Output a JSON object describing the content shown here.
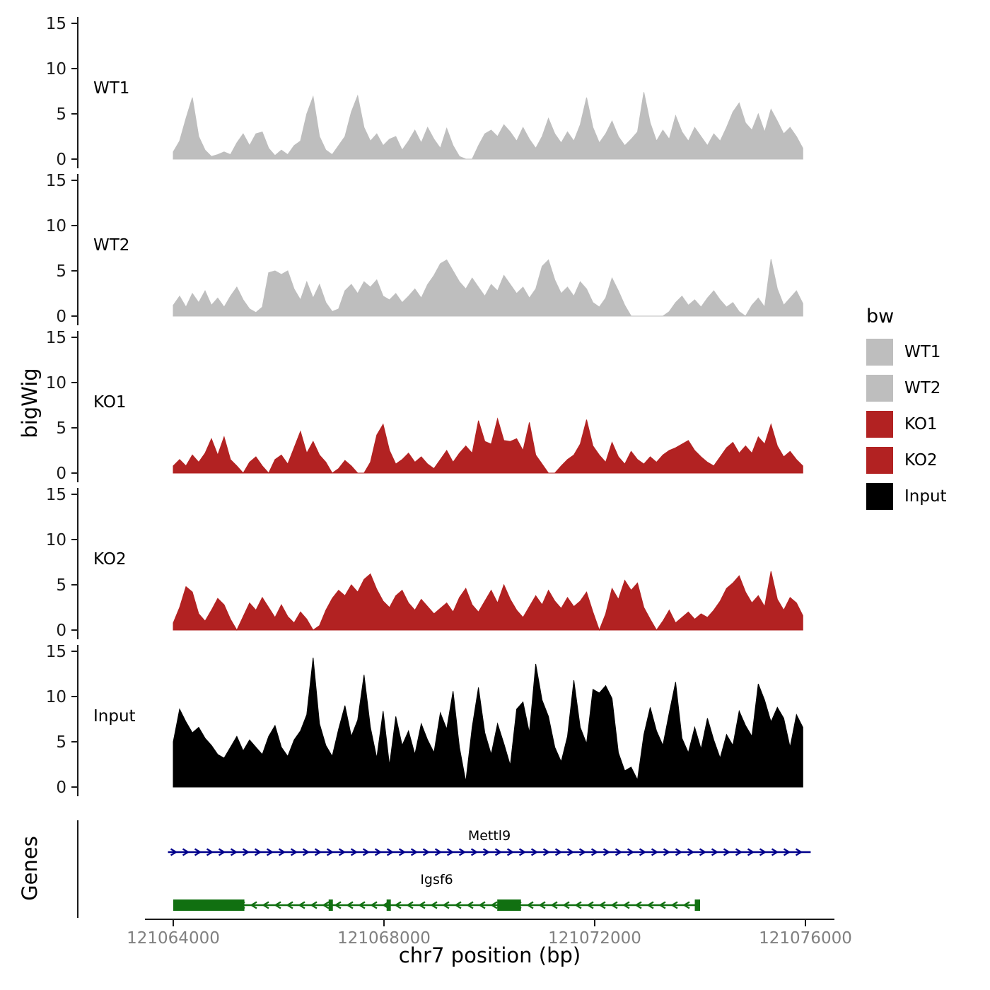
{
  "chart_data": {
    "type": "area",
    "title": "",
    "ylabel": "bigWig",
    "xlabel": "chr7 position (bp)",
    "genes_panel_label": "Genes",
    "legend": {
      "title": "bw",
      "items": [
        {
          "label": "WT1",
          "color": "#bebebe"
        },
        {
          "label": "WT2",
          "color": "#bebebe"
        },
        {
          "label": "KO1",
          "color": "#b22222"
        },
        {
          "label": "KO2",
          "color": "#b22222"
        },
        {
          "label": "Input",
          "color": "#000000"
        }
      ]
    },
    "y_axis": {
      "ticks": [
        0,
        5,
        10,
        15
      ],
      "tick_labels": [
        "0",
        "5",
        "10",
        "15"
      ],
      "range": [
        0,
        15
      ]
    },
    "x_axis": {
      "ticks": [
        121064000,
        121068000,
        121072000,
        121076000
      ],
      "tick_labels": [
        "121064000",
        "121068000",
        "121072000",
        "121076000"
      ]
    },
    "x_range_bp": [
      121064000,
      121075950
    ],
    "tracks": [
      {
        "name": "WT1",
        "color": "#bebebe",
        "values": [
          0.8,
          2.0,
          4.5,
          6.8,
          2.5,
          1.0,
          0.3,
          0.5,
          0.8,
          0.5,
          1.8,
          2.8,
          1.5,
          2.8,
          3.0,
          1.2,
          0.4,
          1.0,
          0.5,
          1.5,
          2.0,
          5.0,
          6.9,
          2.5,
          1.0,
          0.5,
          1.5,
          2.5,
          5.2,
          7.0,
          3.5,
          2.0,
          2.8,
          1.5,
          2.2,
          2.5,
          1.0,
          2.0,
          3.2,
          1.8,
          3.5,
          2.2,
          1.2,
          3.4,
          1.5,
          0.3,
          0.0,
          0.0,
          1.5,
          2.8,
          3.2,
          2.5,
          3.8,
          3.0,
          2.0,
          3.5,
          2.2,
          1.2,
          2.5,
          4.5,
          2.8,
          1.8,
          3.0,
          2.0,
          3.8,
          6.8,
          3.5,
          1.8,
          2.8,
          4.2,
          2.5,
          1.5,
          2.2,
          3.0,
          7.4,
          4.0,
          2.0,
          3.2,
          2.2,
          4.8,
          3.0,
          2.0,
          3.5,
          2.5,
          1.5,
          2.8,
          2.0,
          3.5,
          5.2,
          6.2,
          4.0,
          3.2,
          5.0,
          3.0,
          5.5,
          4.2,
          2.8,
          3.5,
          2.5,
          1.2
        ]
      },
      {
        "name": "WT2",
        "color": "#bebebe",
        "values": [
          1.2,
          2.2,
          1.0,
          2.5,
          1.5,
          2.8,
          1.2,
          2.0,
          1.0,
          2.2,
          3.2,
          1.8,
          0.8,
          0.4,
          1.0,
          4.8,
          5.0,
          4.6,
          5.0,
          3.0,
          1.8,
          3.8,
          2.0,
          3.5,
          1.5,
          0.5,
          0.8,
          2.8,
          3.5,
          2.5,
          3.8,
          3.2,
          4.0,
          2.2,
          1.8,
          2.5,
          1.5,
          2.2,
          3.0,
          2.0,
          3.5,
          4.5,
          5.8,
          6.2,
          5.0,
          3.8,
          3.0,
          4.2,
          3.2,
          2.2,
          3.5,
          2.8,
          4.5,
          3.5,
          2.5,
          3.2,
          2.0,
          3.0,
          5.5,
          6.2,
          4.0,
          2.5,
          3.2,
          2.2,
          3.8,
          3.0,
          1.5,
          1.0,
          2.0,
          4.2,
          2.8,
          1.2,
          0.0,
          0.0,
          0.0,
          0.0,
          0.0,
          0.0,
          0.5,
          1.5,
          2.2,
          1.2,
          1.8,
          1.0,
          2.0,
          2.8,
          1.8,
          1.0,
          1.5,
          0.5,
          0.0,
          1.2,
          2.0,
          1.0,
          6.3,
          3.0,
          1.2,
          2.0,
          2.8,
          1.4
        ]
      },
      {
        "name": "KO1",
        "color": "#b22222",
        "values": [
          0.8,
          1.5,
          0.8,
          2.0,
          1.2,
          2.2,
          3.8,
          2.0,
          4.0,
          1.5,
          0.8,
          0.0,
          1.2,
          1.8,
          0.8,
          0.0,
          1.5,
          2.0,
          1.0,
          2.8,
          4.6,
          2.2,
          3.5,
          2.0,
          1.2,
          0.0,
          0.5,
          1.4,
          0.8,
          0.0,
          0.0,
          1.2,
          4.2,
          5.4,
          2.5,
          1.0,
          1.5,
          2.2,
          1.2,
          1.8,
          1.0,
          0.5,
          1.5,
          2.5,
          1.2,
          2.2,
          3.0,
          2.2,
          5.8,
          3.5,
          3.2,
          6.0,
          3.6,
          3.5,
          3.8,
          2.5,
          5.6,
          2.0,
          1.0,
          0.0,
          0.0,
          0.8,
          1.5,
          2.0,
          3.2,
          5.9,
          3.0,
          2.0,
          1.2,
          3.4,
          1.8,
          1.0,
          2.4,
          1.5,
          1.0,
          1.8,
          1.2,
          2.0,
          2.5,
          2.8,
          3.2,
          3.6,
          2.5,
          1.8,
          1.2,
          0.8,
          1.8,
          2.8,
          3.4,
          2.2,
          3.0,
          2.2,
          4.0,
          3.2,
          5.4,
          3.0,
          1.8,
          2.4,
          1.5,
          0.8
        ]
      },
      {
        "name": "KO2",
        "color": "#b22222",
        "values": [
          0.8,
          2.5,
          4.8,
          4.2,
          1.8,
          1.0,
          2.2,
          3.5,
          2.8,
          1.2,
          0.0,
          1.5,
          3.0,
          2.2,
          3.6,
          2.5,
          1.4,
          2.8,
          1.5,
          0.8,
          2.0,
          1.2,
          0.0,
          0.5,
          2.2,
          3.5,
          4.4,
          3.8,
          5.0,
          4.2,
          5.6,
          6.2,
          4.5,
          3.2,
          2.5,
          3.8,
          4.4,
          3.0,
          2.2,
          3.4,
          2.6,
          1.8,
          2.4,
          3.0,
          2.0,
          3.6,
          4.6,
          2.8,
          2.0,
          3.2,
          4.4,
          3.0,
          5.0,
          3.4,
          2.2,
          1.4,
          2.6,
          3.8,
          2.8,
          4.4,
          3.2,
          2.4,
          3.6,
          2.6,
          3.2,
          4.2,
          2.0,
          0.0,
          1.8,
          4.6,
          3.4,
          5.5,
          4.4,
          5.2,
          2.5,
          1.2,
          0.0,
          1.0,
          2.2,
          0.8,
          1.4,
          2.0,
          1.2,
          1.8,
          1.4,
          2.2,
          3.2,
          4.6,
          5.2,
          6.0,
          4.2,
          3.0,
          3.8,
          2.6,
          6.5,
          3.4,
          2.2,
          3.6,
          3.0,
          1.6
        ]
      },
      {
        "name": "Input",
        "color": "#000000",
        "values": [
          5.0,
          8.6,
          7.2,
          6.0,
          6.6,
          5.4,
          4.6,
          3.6,
          3.2,
          4.4,
          5.6,
          4.0,
          5.2,
          4.4,
          3.6,
          5.6,
          6.8,
          4.4,
          3.4,
          5.2,
          6.2,
          8.0,
          14.3,
          7.0,
          4.6,
          3.4,
          6.4,
          9.0,
          5.6,
          7.4,
          12.4,
          6.6,
          3.2,
          8.4,
          2.4,
          7.8,
          4.6,
          6.2,
          3.6,
          7.0,
          5.2,
          3.8,
          8.2,
          6.4,
          10.6,
          4.4,
          0.6,
          6.6,
          11.0,
          6.0,
          3.6,
          7.0,
          4.8,
          2.4,
          8.6,
          9.4,
          6.0,
          13.6,
          9.6,
          7.8,
          4.4,
          2.8,
          5.6,
          11.8,
          6.6,
          4.8,
          10.8,
          10.4,
          11.2,
          9.8,
          3.8,
          1.8,
          2.2,
          0.8,
          5.8,
          8.8,
          6.2,
          4.6,
          8.2,
          11.6,
          5.4,
          3.8,
          6.6,
          4.2,
          7.6,
          5.2,
          3.2,
          5.8,
          4.6,
          8.4,
          6.8,
          5.6,
          11.4,
          9.6,
          7.2,
          8.8,
          7.6,
          4.4,
          8.0,
          6.6
        ]
      }
    ],
    "genes": [
      {
        "name": "Mettl9",
        "color": "#00008b",
        "strand": "+",
        "start": 121063900,
        "end": 121076100,
        "exons": []
      },
      {
        "name": "Igsf6",
        "color": "#117011",
        "strand": "-",
        "start": 121064000,
        "end": 121074000,
        "exons": [
          [
            121064000,
            121065350
          ],
          [
            121066950,
            121067030
          ],
          [
            121068050,
            121068130
          ],
          [
            121070150,
            121070600
          ],
          [
            121073900,
            121074000
          ]
        ]
      }
    ]
  }
}
